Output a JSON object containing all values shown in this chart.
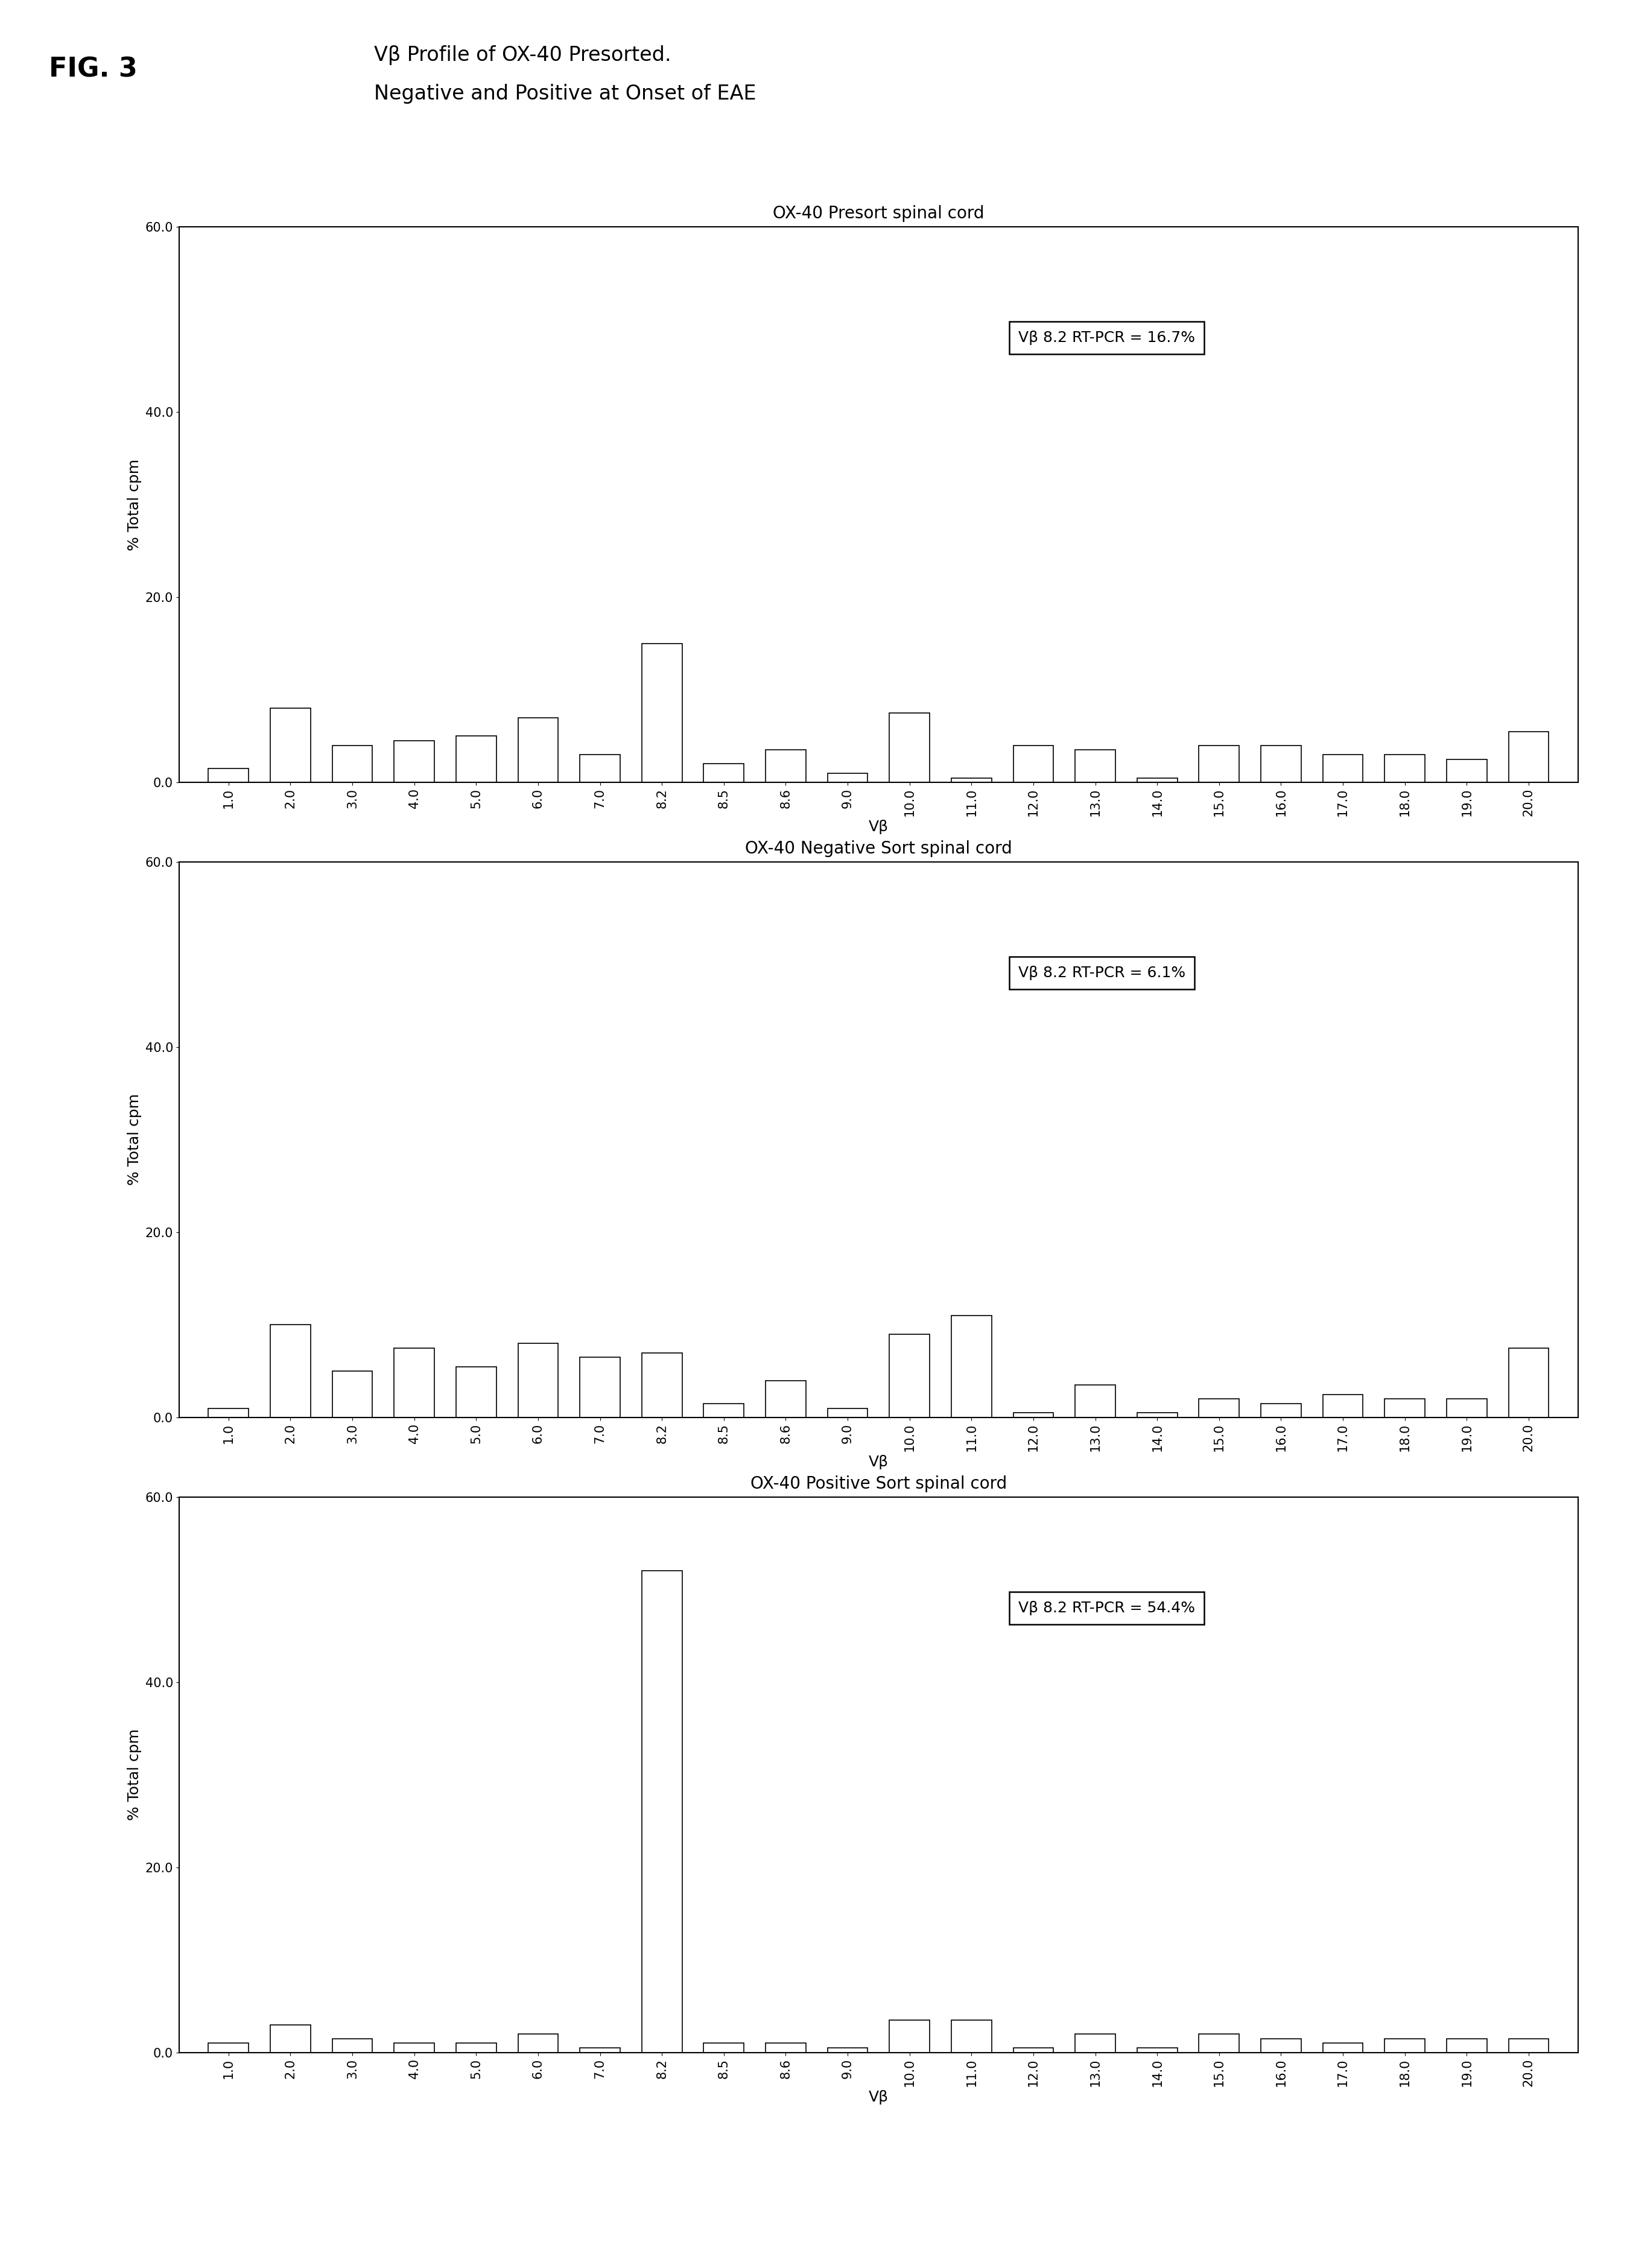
{
  "fig_label": "FIG. 3",
  "fig_title_line1": "Vβ Profile of OX-40 Presorted.",
  "fig_title_line2": "Negative and Positive at Onset of EAE",
  "charts": [
    {
      "title": "OX-40 Presort spinal cord",
      "annotation": "Vβ 8.2 RT-PCR = 16.7%",
      "values": [
        1.5,
        8.0,
        4.0,
        4.5,
        5.0,
        7.0,
        3.0,
        15.0,
        2.0,
        3.5,
        1.0,
        7.5,
        0.5,
        4.0,
        3.5,
        0.5,
        4.0,
        4.0,
        3.0,
        3.0,
        2.5,
        5.5
      ]
    },
    {
      "title": "OX-40 Negative Sort spinal cord",
      "annotation": "Vβ 8.2 RT-PCR = 6.1%",
      "values": [
        1.0,
        10.0,
        5.0,
        7.5,
        5.5,
        8.0,
        6.5,
        7.0,
        1.5,
        4.0,
        1.0,
        9.0,
        11.0,
        0.5,
        3.5,
        0.5,
        2.0,
        1.5,
        2.5,
        2.0,
        2.0,
        7.5
      ]
    },
    {
      "title": "OX-40 Positive Sort spinal cord",
      "annotation": "Vβ 8.2 RT-PCR = 54.4%",
      "values": [
        1.0,
        3.0,
        1.5,
        1.0,
        1.0,
        2.0,
        0.5,
        52.0,
        1.0,
        1.0,
        0.5,
        3.5,
        3.5,
        0.5,
        2.0,
        0.5,
        2.0,
        1.5,
        1.0,
        1.5,
        1.5,
        1.5
      ]
    }
  ],
  "x_labels": [
    "1.0",
    "2.0",
    "3.0",
    "4.0",
    "5.0",
    "6.0",
    "7.0",
    "8.2",
    "8.5",
    "8.6",
    "9.0",
    "10.0",
    "11.0",
    "12.0",
    "13.0",
    "14.0",
    "15.0",
    "16.0",
    "17.0",
    "18.0",
    "19.0",
    "20.0"
  ],
  "ylabel": "% Total cpm",
  "xlabel": "Vβ",
  "ylim": [
    0,
    60
  ],
  "yticks": [
    0.0,
    20.0,
    40.0,
    60.0
  ],
  "ytick_labels": [
    "0.0",
    "20.0",
    "40.0",
    "60.0"
  ],
  "bar_color": "white",
  "bar_edgecolor": "black",
  "background_color": "white",
  "fig_label_fontsize": 32,
  "fig_title_fontsize": 24,
  "title_fontsize": 20,
  "annotation_fontsize": 18,
  "axis_label_fontsize": 18,
  "tick_fontsize": 15
}
